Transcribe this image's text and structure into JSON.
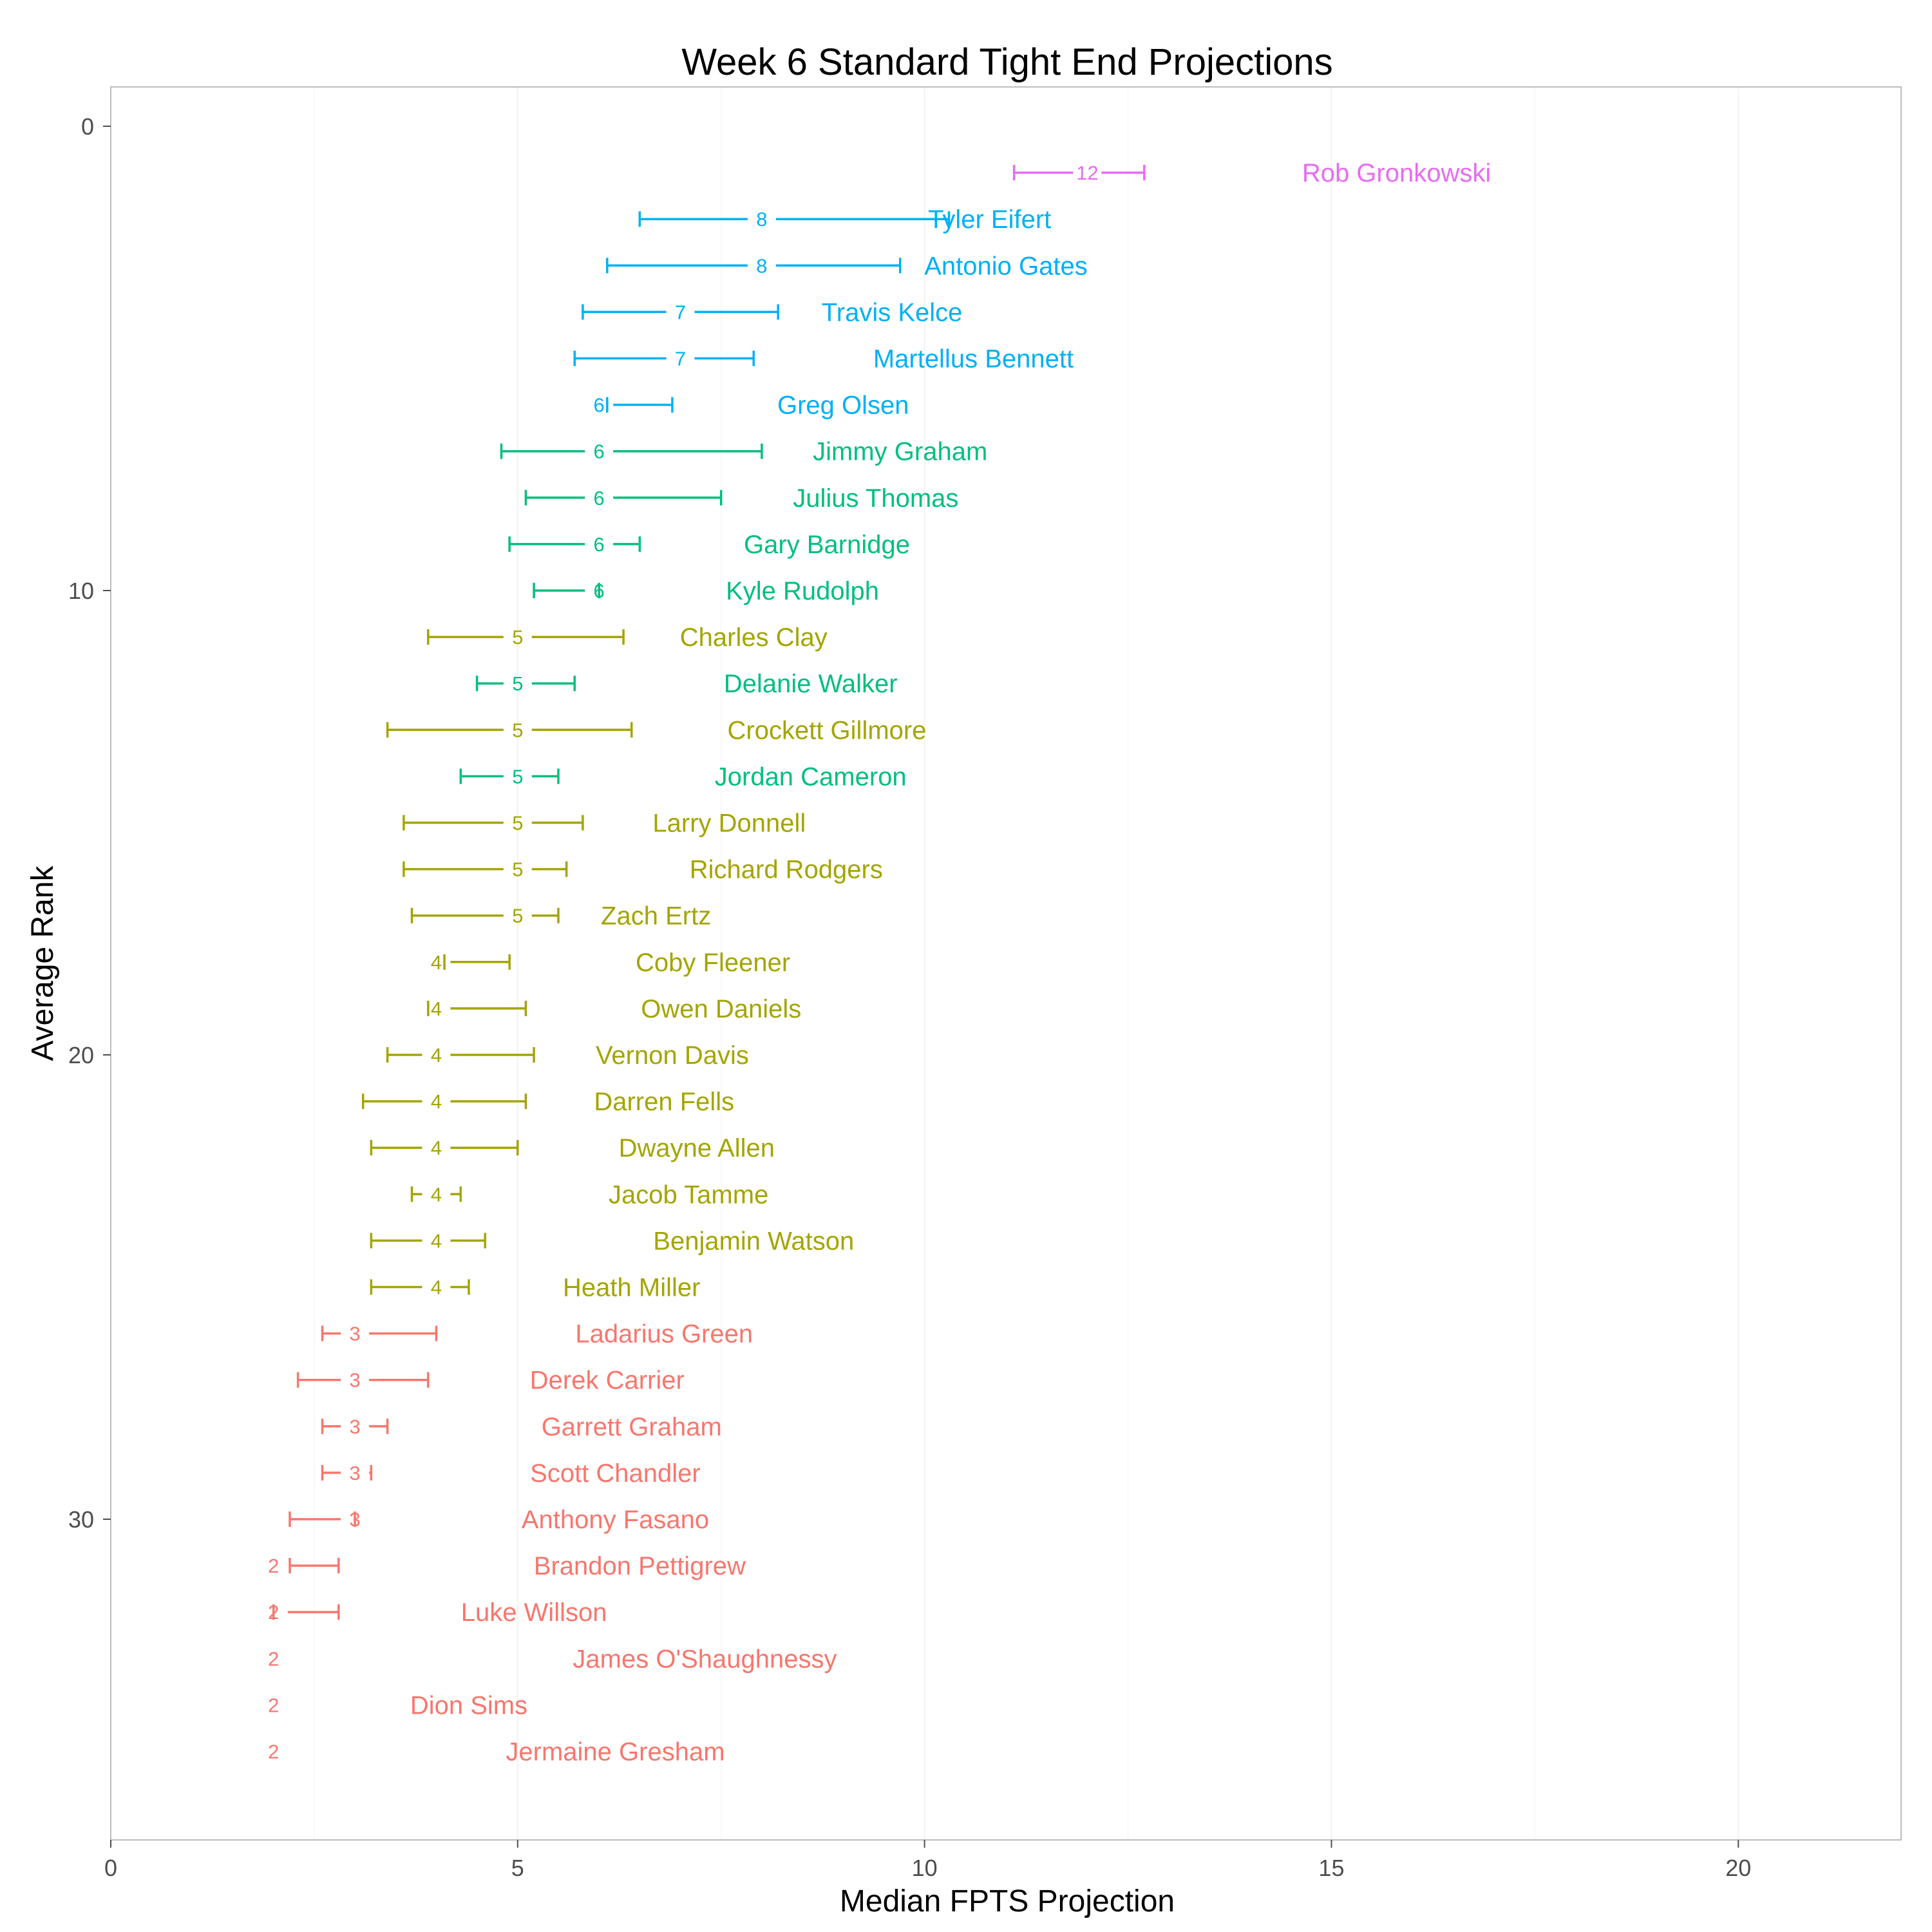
{
  "chart_data": {
    "type": "errorbar",
    "title": "Week 6 Standard Tight End Projections",
    "xlabel": "Median FPTS Projection",
    "ylabel": "Average Rank",
    "xlim": [
      0,
      22
    ],
    "ylim": [
      0,
      37
    ],
    "x_ticks": [
      0,
      5,
      10,
      15,
      20
    ],
    "y_ticks": [
      0,
      10,
      20,
      30
    ],
    "y_reversed": true,
    "grid": true,
    "tier_colors": {
      "tier1": "#E76BF3",
      "tier2": "#00B0F6",
      "tier3": "#00BF7D",
      "tier4": "#A3A500",
      "tier5": "#F8766D"
    },
    "players": [
      {
        "name": "Rob Gronkowski",
        "rank": 1,
        "median": 12,
        "low": 11.1,
        "high": 12.7,
        "label_x": 15.8,
        "tier": "tier1"
      },
      {
        "name": "Tyler Eifert",
        "rank": 2,
        "median": 8,
        "low": 6.5,
        "high": 10.3,
        "label_x": 10.8,
        "tier": "tier2"
      },
      {
        "name": "Antonio Gates",
        "rank": 3,
        "median": 8,
        "low": 6.1,
        "high": 9.7,
        "label_x": 11.0,
        "tier": "tier2"
      },
      {
        "name": "Travis Kelce",
        "rank": 4,
        "median": 7,
        "low": 5.8,
        "high": 8.2,
        "label_x": 9.6,
        "tier": "tier2"
      },
      {
        "name": "Martellus Bennett",
        "rank": 5,
        "median": 7,
        "low": 5.7,
        "high": 7.9,
        "label_x": 10.6,
        "tier": "tier2"
      },
      {
        "name": "Greg Olsen",
        "rank": 6,
        "median": 6,
        "low": 6.1,
        "high": 6.9,
        "label_x": 9.0,
        "tier": "tier2"
      },
      {
        "name": "Jimmy Graham",
        "rank": 7,
        "median": 6,
        "low": 4.8,
        "high": 8.0,
        "label_x": 9.7,
        "tier": "tier3"
      },
      {
        "name": "Julius Thomas",
        "rank": 8,
        "median": 6,
        "low": 5.1,
        "high": 7.5,
        "label_x": 9.4,
        "tier": "tier3"
      },
      {
        "name": "Gary Barnidge",
        "rank": 9,
        "median": 6,
        "low": 4.9,
        "high": 6.5,
        "label_x": 8.8,
        "tier": "tier3"
      },
      {
        "name": "Kyle Rudolph",
        "rank": 10,
        "median": 6,
        "low": 5.2,
        "high": 6.0,
        "label_x": 8.5,
        "tier": "tier3"
      },
      {
        "name": "Charles Clay",
        "rank": 11,
        "median": 5,
        "low": 3.9,
        "high": 6.3,
        "label_x": 7.9,
        "tier": "tier4"
      },
      {
        "name": "Delanie Walker",
        "rank": 12,
        "median": 5,
        "low": 4.5,
        "high": 5.7,
        "label_x": 8.6,
        "tier": "tier3"
      },
      {
        "name": "Crockett Gillmore",
        "rank": 13,
        "median": 5,
        "low": 3.4,
        "high": 6.4,
        "label_x": 8.8,
        "tier": "tier4"
      },
      {
        "name": "Jordan Cameron",
        "rank": 14,
        "median": 5,
        "low": 4.3,
        "high": 5.5,
        "label_x": 8.6,
        "tier": "tier3"
      },
      {
        "name": "Larry Donnell",
        "rank": 15,
        "median": 5,
        "low": 3.6,
        "high": 5.8,
        "label_x": 7.6,
        "tier": "tier4"
      },
      {
        "name": "Richard Rodgers",
        "rank": 16,
        "median": 5,
        "low": 3.6,
        "high": 5.6,
        "label_x": 8.3,
        "tier": "tier4"
      },
      {
        "name": "Zach Ertz",
        "rank": 17,
        "median": 5,
        "low": 3.7,
        "high": 5.5,
        "label_x": 6.7,
        "tier": "tier4"
      },
      {
        "name": "Coby Fleener",
        "rank": 18,
        "median": 4,
        "low": 4.1,
        "high": 4.9,
        "label_x": 7.4,
        "tier": "tier4"
      },
      {
        "name": "Owen Daniels",
        "rank": 19,
        "median": 4,
        "low": 3.9,
        "high": 5.1,
        "label_x": 7.5,
        "tier": "tier4"
      },
      {
        "name": "Vernon Davis",
        "rank": 20,
        "median": 4,
        "low": 3.4,
        "high": 5.2,
        "label_x": 6.9,
        "tier": "tier4"
      },
      {
        "name": "Darren Fells",
        "rank": 21,
        "median": 4,
        "low": 3.1,
        "high": 5.1,
        "label_x": 6.8,
        "tier": "tier4"
      },
      {
        "name": "Dwayne Allen",
        "rank": 22,
        "median": 4,
        "low": 3.2,
        "high": 5.0,
        "label_x": 7.2,
        "tier": "tier4"
      },
      {
        "name": "Jacob Tamme",
        "rank": 23,
        "median": 4,
        "low": 3.7,
        "high": 4.3,
        "label_x": 7.1,
        "tier": "tier4"
      },
      {
        "name": "Benjamin Watson",
        "rank": 24,
        "median": 4,
        "low": 3.2,
        "high": 4.6,
        "label_x": 7.9,
        "tier": "tier4"
      },
      {
        "name": "Heath Miller",
        "rank": 25,
        "median": 4,
        "low": 3.2,
        "high": 4.4,
        "label_x": 6.4,
        "tier": "tier4"
      },
      {
        "name": "Ladarius Green",
        "rank": 26,
        "median": 3,
        "low": 2.6,
        "high": 4.0,
        "label_x": 6.8,
        "tier": "tier5"
      },
      {
        "name": "Derek Carrier",
        "rank": 27,
        "median": 3,
        "low": 2.3,
        "high": 3.9,
        "label_x": 6.1,
        "tier": "tier5"
      },
      {
        "name": "Garrett Graham",
        "rank": 28,
        "median": 3,
        "low": 2.6,
        "high": 3.4,
        "label_x": 6.4,
        "tier": "tier5"
      },
      {
        "name": "Scott Chandler",
        "rank": 29,
        "median": 3,
        "low": 2.6,
        "high": 3.2,
        "label_x": 6.2,
        "tier": "tier5"
      },
      {
        "name": "Anthony Fasano",
        "rank": 30,
        "median": 3,
        "low": 2.2,
        "high": 3.0,
        "label_x": 6.2,
        "tier": "tier5"
      },
      {
        "name": "Brandon Pettigrew",
        "rank": 31,
        "median": 2,
        "low": 2.2,
        "high": 2.8,
        "label_x": 6.5,
        "tier": "tier5"
      },
      {
        "name": "Luke Willson",
        "rank": 32,
        "median": 2,
        "low": 2.0,
        "high": 2.8,
        "label_x": 5.2,
        "tier": "tier5"
      },
      {
        "name": "James O'Shaughnessy",
        "rank": 33,
        "median": 2,
        "low": null,
        "high": null,
        "label_x": 7.3,
        "tier": "tier5"
      },
      {
        "name": "Dion Sims",
        "rank": 34,
        "median": 2,
        "low": null,
        "high": null,
        "label_x": 4.4,
        "tier": "tier5"
      },
      {
        "name": "Jermaine Gresham",
        "rank": 35,
        "median": 2,
        "low": null,
        "high": null,
        "label_x": 6.2,
        "tier": "tier5"
      }
    ]
  }
}
